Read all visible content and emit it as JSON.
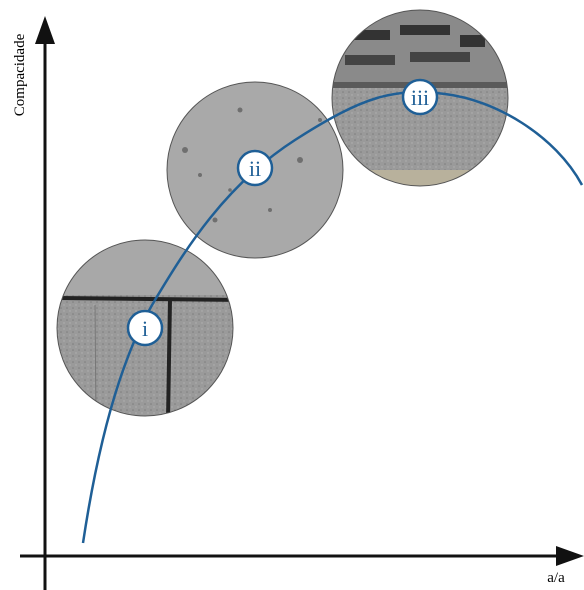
{
  "y_axis_label": "Compacidade",
  "x_axis_label": "a/a",
  "markers": [
    {
      "label": "i"
    },
    {
      "label": "ii"
    },
    {
      "label": "iii"
    }
  ]
}
